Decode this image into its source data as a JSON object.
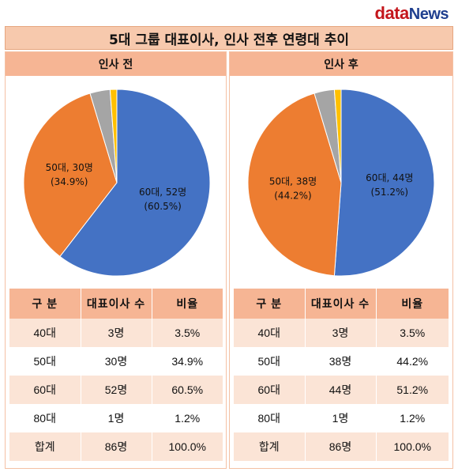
{
  "logo": {
    "part1": "data",
    "part2": "News"
  },
  "title": "5대 그룹 대표이사, 인사 전후 연령대 추이",
  "colors": {
    "40대": "#a5a5a5",
    "50대": "#ed7d31",
    "60대": "#4472c4",
    "80대": "#ffc000"
  },
  "chart_data": [
    {
      "type": "pie",
      "title": "인사 전",
      "categories": [
        "40대",
        "50대",
        "60대",
        "80대"
      ],
      "values": [
        3,
        30,
        52,
        1
      ],
      "percents": [
        3.5,
        34.9,
        60.5,
        1.2
      ],
      "labels": [
        {
          "category": "50대",
          "line1": "50대, 30명",
          "line2": "(34.9%)"
        },
        {
          "category": "60대",
          "line1": "60대, 52명",
          "line2": "(60.5%)"
        }
      ]
    },
    {
      "type": "pie",
      "title": "인사 후",
      "categories": [
        "40대",
        "50대",
        "60대",
        "80대"
      ],
      "values": [
        3,
        38,
        44,
        1
      ],
      "percents": [
        3.5,
        44.2,
        51.2,
        1.2
      ],
      "labels": [
        {
          "category": "50대",
          "line1": "50대, 38명",
          "line2": "(44.2%)"
        },
        {
          "category": "60대",
          "line1": "60대, 44명",
          "line2": "(51.2%)"
        }
      ]
    }
  ],
  "tables": [
    {
      "headers": [
        "구  분",
        "대표이사 수",
        "비율"
      ],
      "rows": [
        [
          "40대",
          "3명",
          "3.5%"
        ],
        [
          "50대",
          "30명",
          "34.9%"
        ],
        [
          "60대",
          "52명",
          "60.5%"
        ],
        [
          "80대",
          "1명",
          "1.2%"
        ],
        [
          "합계",
          "86명",
          "100.0%"
        ]
      ]
    },
    {
      "headers": [
        "구  분",
        "대표이사 수",
        "비율"
      ],
      "rows": [
        [
          "40대",
          "3명",
          "3.5%"
        ],
        [
          "50대",
          "38명",
          "44.2%"
        ],
        [
          "60대",
          "44명",
          "51.2%"
        ],
        [
          "80대",
          "1명",
          "1.2%"
        ],
        [
          "합계",
          "86명",
          "100.0%"
        ]
      ]
    }
  ]
}
